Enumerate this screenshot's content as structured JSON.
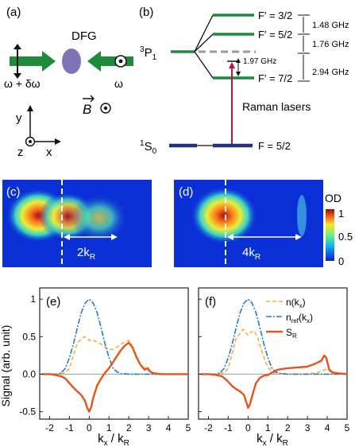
{
  "figure": {
    "panel_labels": {
      "a": "(a)",
      "b": "(b)",
      "c": "(c)",
      "d": "(d)",
      "e": "(e)",
      "f": "(f)"
    }
  },
  "panel_a": {
    "dfg_label": "DFG",
    "beam_left_label": "ω + δω",
    "beam_right_label": "ω",
    "field_label": "B",
    "axis_y": "y",
    "axis_z": "z",
    "axis_x": "x"
  },
  "panel_b": {
    "state_upper": "3P1",
    "state_ground": "1S0",
    "levels": [
      {
        "label": "F′ = 3/2"
      },
      {
        "label": "F′ = 5/2"
      },
      {
        "label": "F′ = 7/2"
      },
      {
        "label": "F = 5/2"
      }
    ],
    "spacings": [
      "1.48 GHz",
      "1.76 GHz",
      "2.94 GHz"
    ],
    "detuning": "1.97 GHz",
    "raman_label": "Raman lasers"
  },
  "panel_images": {
    "colorbar_title": "OD",
    "colorbar_ticks": [
      "1",
      "0.5",
      "0"
    ],
    "c_annotation": "2k",
    "d_annotation": "4k",
    "annotation_subscript": "R"
  },
  "chart_data": [
    {
      "type": "line",
      "panel": "(e)",
      "xlabel": "kx / kR",
      "ylabel": "Signal (arb. unit)",
      "xlim": [
        -2.5,
        5
      ],
      "ylim": [
        -0.6,
        1.15
      ],
      "xticks": [
        "-2",
        "-1",
        "0",
        "1",
        "2",
        "3",
        "4",
        "5"
      ],
      "yticks": [
        "1",
        "0.5",
        "0.0",
        "-0.5"
      ],
      "series": [
        {
          "color": "#f2b136",
          "dash": "5,3",
          "x": [
            -2.4,
            -1.6,
            -1.2,
            -1.0,
            -0.8,
            -0.6,
            -0.4,
            -0.25,
            -0.1,
            0,
            0.15,
            0.3,
            0.6,
            0.8,
            1.0,
            1.2,
            1.4,
            1.6,
            1.8,
            2.0,
            2.1,
            2.25,
            2.4,
            2.6,
            2.8,
            3.0,
            3.2,
            3.5,
            4.0,
            5.0
          ],
          "y": [
            0,
            0,
            0.02,
            0.08,
            0.25,
            0.42,
            0.47,
            0.5,
            0.48,
            0.45,
            0.46,
            0.44,
            0.4,
            0.36,
            0.33,
            0.33,
            0.36,
            0.4,
            0.43,
            0.45,
            0.42,
            0.3,
            0.2,
            0.12,
            0.08,
            0.05,
            0.02,
            0.01,
            0,
            0
          ]
        },
        {
          "color": "#1f7fc4",
          "dash": "7,2,2,2",
          "x": [
            -2.4,
            -1.6,
            -1.4,
            -1.2,
            -1.0,
            -0.8,
            -0.6,
            -0.4,
            -0.2,
            0,
            0.2,
            0.4,
            0.6,
            0.8,
            1.0,
            1.2,
            1.4,
            1.6,
            2.0,
            3.0,
            5.0
          ],
          "y": [
            0,
            0,
            0.02,
            0.08,
            0.22,
            0.4,
            0.62,
            0.82,
            0.95,
            1.0,
            0.95,
            0.82,
            0.62,
            0.4,
            0.22,
            0.08,
            0.03,
            0.01,
            0,
            0,
            0
          ]
        },
        {
          "color": "#e0561b",
          "dash": "",
          "x": [
            -2.4,
            -2.0,
            -1.7,
            -1.4,
            -1.2,
            -1.0,
            -0.8,
            -0.6,
            -0.4,
            -0.2,
            -0.1,
            0,
            0.1,
            0.2,
            0.4,
            0.6,
            0.8,
            1.0,
            1.2,
            1.4,
            1.6,
            1.8,
            2.0,
            2.2,
            2.4,
            2.6,
            2.8,
            2.95,
            3.1,
            3.3,
            3.6,
            4.0,
            4.5,
            5.0
          ],
          "y": [
            0,
            0,
            -0.01,
            -0.03,
            -0.06,
            -0.12,
            -0.18,
            -0.23,
            -0.28,
            -0.36,
            -0.45,
            -0.5,
            -0.44,
            -0.32,
            -0.15,
            -0.06,
            0.02,
            0.08,
            0.16,
            0.24,
            0.32,
            0.38,
            0.42,
            0.35,
            0.22,
            0.12,
            0.06,
            0.08,
            0.03,
            0.01,
            0,
            0,
            0,
            0
          ]
        }
      ]
    },
    {
      "type": "line",
      "panel": "(f)",
      "xlabel": "kx / kR",
      "xlim": [
        -2.5,
        5
      ],
      "ylim": [
        -0.6,
        1.15
      ],
      "xticks": [
        "-2",
        "-1",
        "0",
        "1",
        "2",
        "3",
        "4",
        "5"
      ],
      "legend": [
        "n(kx)",
        "nref(kx)",
        "SR"
      ],
      "legend_position": "top-right",
      "series": [
        {
          "name": "n(kx)",
          "color": "#f2b136",
          "dash": "5,3",
          "x": [
            -2.4,
            -1.6,
            -1.2,
            -1.0,
            -0.8,
            -0.6,
            -0.4,
            -0.25,
            -0.1,
            0,
            0.15,
            0.3,
            0.5,
            0.7,
            0.9,
            1.1,
            1.3,
            1.6,
            2.0,
            2.5,
            3.0,
            3.5,
            3.8,
            4.0,
            4.2,
            5.0
          ],
          "y": [
            0,
            0,
            0.02,
            0.08,
            0.28,
            0.48,
            0.55,
            0.6,
            0.55,
            0.52,
            0.56,
            0.58,
            0.48,
            0.3,
            0.15,
            0.06,
            0.02,
            0.01,
            0,
            0,
            0,
            0.02,
            0.05,
            0.07,
            0.02,
            0
          ]
        },
        {
          "name": "nref(kx)",
          "color": "#1f7fc4",
          "dash": "7,2,2,2",
          "x": [
            -2.4,
            -1.6,
            -1.4,
            -1.2,
            -1.0,
            -0.8,
            -0.6,
            -0.4,
            -0.2,
            0,
            0.2,
            0.4,
            0.6,
            0.8,
            1.0,
            1.2,
            1.4,
            1.6,
            2.0,
            3.0,
            5.0
          ],
          "y": [
            0,
            0,
            0.02,
            0.08,
            0.22,
            0.4,
            0.62,
            0.82,
            0.95,
            1.0,
            0.95,
            0.82,
            0.62,
            0.4,
            0.22,
            0.08,
            0.03,
            0.01,
            0,
            0,
            0
          ]
        },
        {
          "name": "SR",
          "color": "#e0561b",
          "dash": "",
          "x": [
            -2.4,
            -2.0,
            -1.6,
            -1.3,
            -1.0,
            -0.8,
            -0.6,
            -0.4,
            -0.2,
            -0.1,
            0,
            0.1,
            0.2,
            0.4,
            0.6,
            0.8,
            1.0,
            1.2,
            1.5,
            2.0,
            2.5,
            3.0,
            3.4,
            3.7,
            3.85,
            3.95,
            4.1,
            4.3,
            4.6,
            5.0
          ],
          "y": [
            0,
            0,
            -0.01,
            -0.03,
            -0.1,
            -0.16,
            -0.2,
            -0.23,
            -0.28,
            -0.36,
            -0.45,
            -0.4,
            -0.3,
            -0.12,
            -0.05,
            -0.02,
            -0.01,
            0.02,
            0.06,
            0.08,
            0.09,
            0.1,
            0.14,
            0.18,
            0.25,
            0.22,
            0.06,
            0.02,
            0.01,
            0
          ]
        }
      ]
    }
  ],
  "colors": {
    "green": "#1e8a3c",
    "navy": "#1f2f8a",
    "red": "#c0143c",
    "gray": "#9a9a9a"
  }
}
